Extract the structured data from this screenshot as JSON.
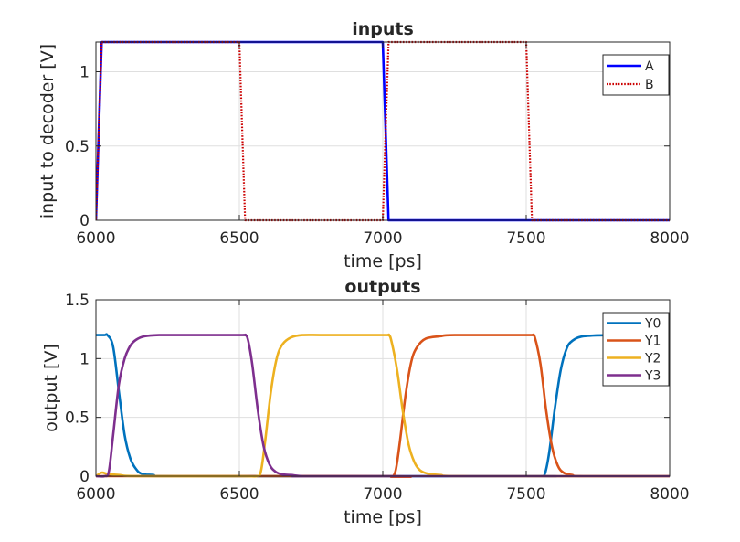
{
  "chart_data": [
    {
      "type": "line",
      "title": "inputs",
      "xlabel": "time [ps]",
      "ylabel": "input to decoder [V]",
      "xlim": [
        6000,
        8000
      ],
      "ylim": [
        0,
        1.2
      ],
      "xticks": [
        6000,
        6500,
        7000,
        7500,
        8000
      ],
      "yticks": [
        0,
        0.5,
        1
      ],
      "xtick_labels": [
        "6000",
        "6500",
        "7000",
        "7500",
        "8000"
      ],
      "ytick_labels": [
        "0",
        "0.5",
        "1"
      ],
      "grid": true,
      "legend_location": "top-right",
      "series": [
        {
          "name": "A",
          "color": "#0000ff",
          "style": "solid",
          "x": [
            6000,
            6020,
            7000,
            7020,
            8000
          ],
          "y": [
            0,
            1.2,
            1.2,
            0,
            0
          ]
        },
        {
          "name": "B",
          "color": "#cc0000",
          "style": "dotted",
          "x": [
            6000,
            6020,
            6500,
            6520,
            7000,
            7020,
            7500,
            7520,
            8000
          ],
          "y": [
            0,
            1.2,
            1.2,
            0,
            0,
            1.2,
            1.2,
            0,
            0
          ]
        }
      ]
    },
    {
      "type": "line",
      "title": "outputs",
      "xlabel": "time [ps]",
      "ylabel": "output [V]",
      "xlim": [
        6000,
        8000
      ],
      "ylim": [
        0,
        1.5
      ],
      "xticks": [
        6000,
        6500,
        7000,
        7500,
        8000
      ],
      "yticks": [
        0,
        0.5,
        1,
        1.5
      ],
      "xtick_labels": [
        "6000",
        "6500",
        "7000",
        "7500",
        "8000"
      ],
      "ytick_labels": [
        "0",
        "0.5",
        "1",
        "1.5"
      ],
      "grid": true,
      "legend_location": "top-right",
      "series": [
        {
          "name": "Y0",
          "color": "#0072bd",
          "x": [
            6000,
            6030,
            6040,
            6060,
            6080,
            6100,
            6120,
            6140,
            6160,
            6200,
            6300,
            7500,
            7550,
            7565,
            7580,
            7600,
            7620,
            7640,
            7660,
            7700,
            7800,
            8000
          ],
          "y": [
            1.2,
            1.2,
            1.2,
            1.1,
            0.72,
            0.35,
            0.15,
            0.06,
            0.02,
            0.01,
            0,
            0,
            0,
            0.02,
            0.2,
            0.58,
            0.9,
            1.08,
            1.15,
            1.19,
            1.2,
            1.2
          ],
          "smooth": true
        },
        {
          "name": "Y1",
          "color": "#d95319",
          "x": [
            6000,
            7020,
            7030,
            7045,
            7060,
            7080,
            7100,
            7120,
            7150,
            7200,
            7250,
            7500,
            7520,
            7530,
            7550,
            7570,
            7590,
            7610,
            7630,
            7660,
            7700,
            8000
          ],
          "y": [
            0,
            0,
            -0.01,
            0.05,
            0.3,
            0.7,
            0.98,
            1.1,
            1.17,
            1.19,
            1.2,
            1.2,
            1.2,
            1.18,
            0.95,
            0.55,
            0.25,
            0.09,
            0.03,
            0.01,
            0,
            0
          ],
          "smooth": true
        },
        {
          "name": "Y2",
          "color": "#edb120",
          "x": [
            6000,
            6020,
            6040,
            6080,
            6150,
            6500,
            6560,
            6575,
            6590,
            6610,
            6630,
            6650,
            6680,
            6720,
            6800,
            7000,
            7020,
            7030,
            7050,
            7070,
            7090,
            7110,
            7130,
            7160,
            7200,
            7300,
            8000
          ],
          "y": [
            0,
            0.03,
            0.02,
            0.01,
            0,
            0,
            0,
            0.04,
            0.3,
            0.72,
            1.0,
            1.12,
            1.18,
            1.2,
            1.2,
            1.2,
            1.2,
            1.15,
            0.9,
            0.55,
            0.27,
            0.12,
            0.05,
            0.02,
            0.01,
            0,
            0
          ],
          "smooth": true
        },
        {
          "name": "Y3",
          "color": "#7e2f8e",
          "x": [
            6000,
            6030,
            6045,
            6060,
            6080,
            6100,
            6120,
            6140,
            6170,
            6220,
            6300,
            6500,
            6520,
            6530,
            6545,
            6565,
            6585,
            6605,
            6625,
            6650,
            6680,
            6720,
            6800,
            8000
          ],
          "y": [
            0,
            0,
            0.04,
            0.35,
            0.78,
            1.0,
            1.11,
            1.16,
            1.19,
            1.2,
            1.2,
            1.2,
            1.2,
            1.16,
            0.95,
            0.55,
            0.25,
            0.1,
            0.04,
            0.015,
            0.01,
            0,
            0,
            0
          ],
          "smooth": true
        }
      ]
    }
  ]
}
